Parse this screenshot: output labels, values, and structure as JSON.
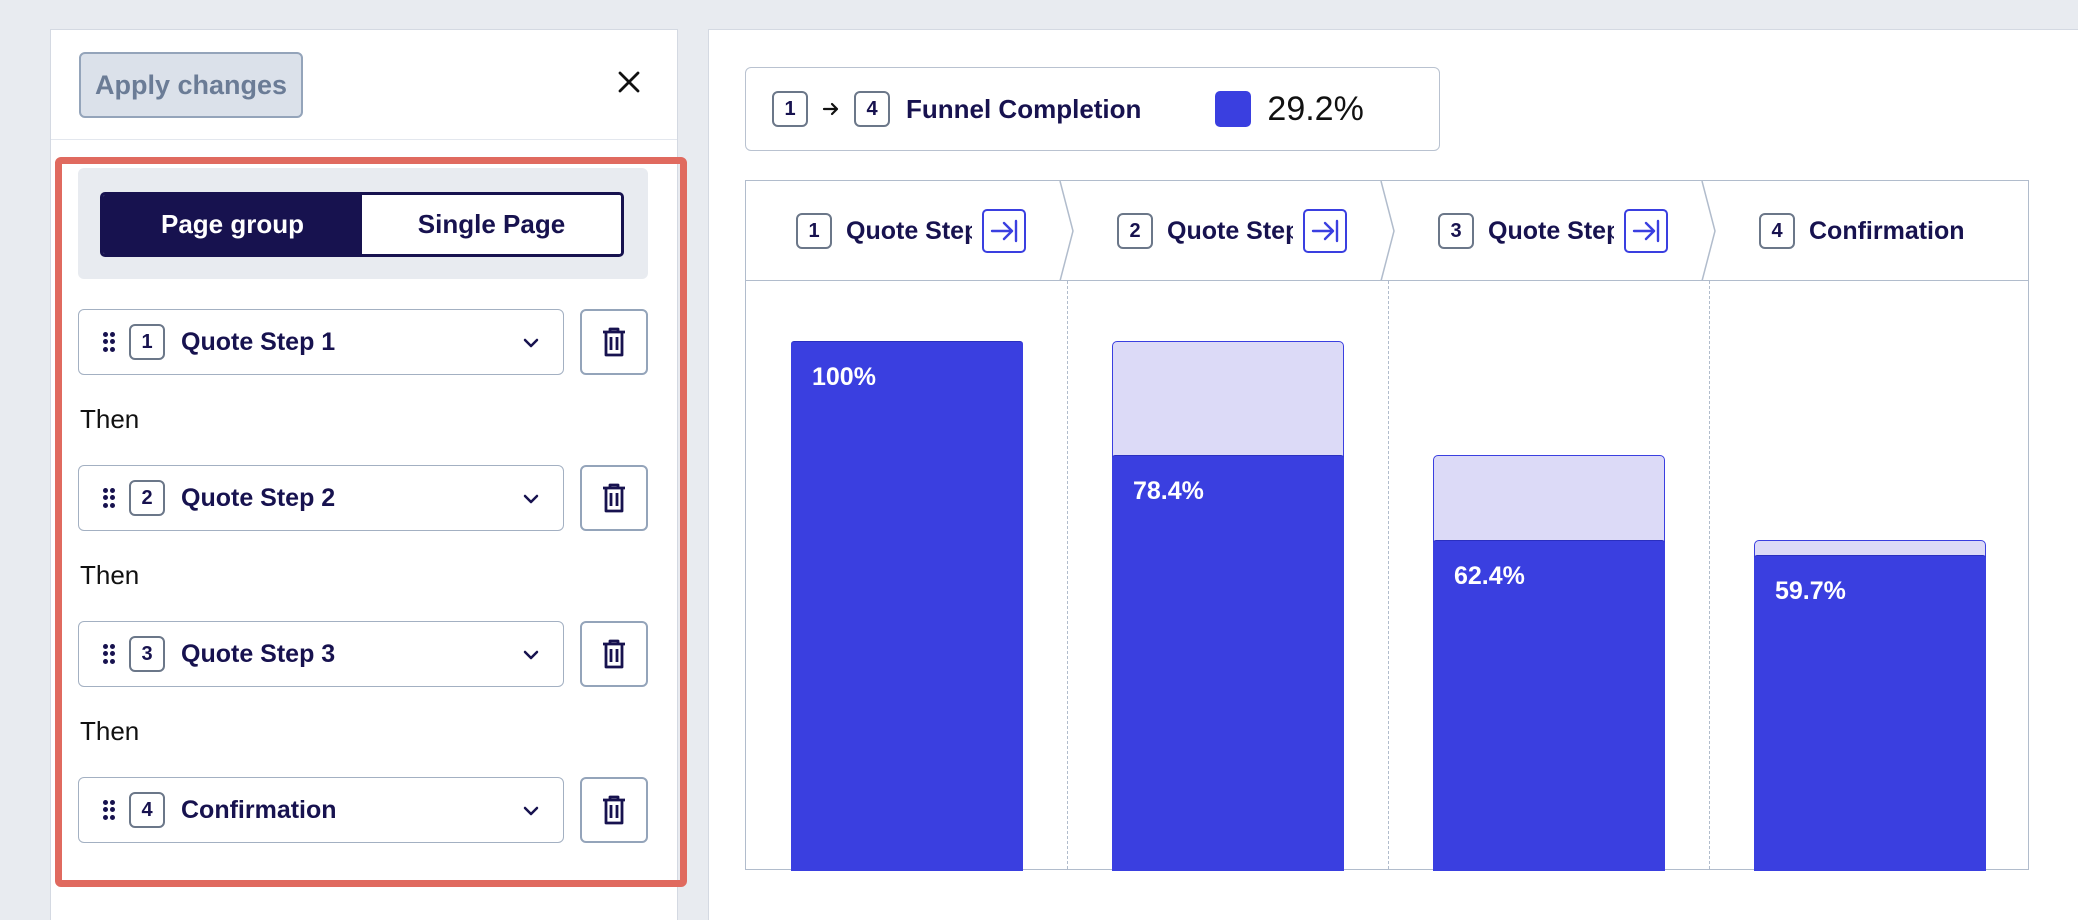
{
  "panel": {
    "apply_label": "Apply changes",
    "toggle": {
      "active": "Page group",
      "inactive": "Single Page"
    },
    "then_label": "Then",
    "steps": [
      {
        "num": "1",
        "label": "Quote Step 1"
      },
      {
        "num": "2",
        "label": "Quote Step 2"
      },
      {
        "num": "3",
        "label": "Quote Step 3"
      },
      {
        "num": "4",
        "label": "Confirmation"
      }
    ]
  },
  "summary": {
    "from": "1",
    "to": "4",
    "title": "Funnel Completion",
    "value": "29.2%",
    "swatch_color": "#3a3fe0"
  },
  "chart_data": {
    "type": "bar",
    "categories": [
      "Quote Step 1",
      "Quote Step 2",
      "Quote Step 3",
      "Confirmation"
    ],
    "header_labels": [
      "Quote Step",
      "Quote Step",
      "Quote Step",
      "Confirmation"
    ],
    "numbers": [
      "1",
      "2",
      "3",
      "4"
    ],
    "values": [
      100,
      78.4,
      62.4,
      59.7
    ],
    "previous_values": [
      100,
      100,
      78.4,
      62.4
    ],
    "labels": [
      "100%",
      "78.4%",
      "62.4%",
      "59.7%"
    ],
    "ylim": [
      0,
      100
    ],
    "fill_color": "#3a3fe0",
    "ghost_color": "#dcdaf7"
  }
}
